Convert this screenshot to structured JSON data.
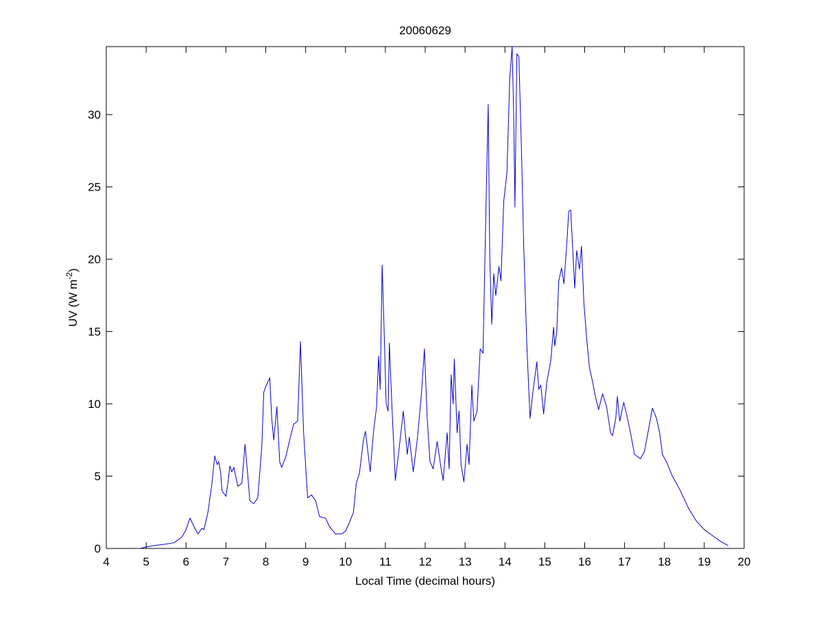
{
  "chart_data": {
    "type": "line",
    "title": "20060629",
    "xlabel": "Local Time (decimal hours)",
    "ylabel": {
      "text": "UV (W m",
      "superscript": "-2",
      "suffix": ")"
    },
    "color": "#0000cc",
    "xlim": [
      4,
      20
    ],
    "xticks": [
      4,
      5,
      6,
      7,
      8,
      9,
      10,
      11,
      12,
      13,
      14,
      15,
      16,
      17,
      18,
      19,
      20
    ],
    "ylim": [
      0,
      34.7
    ],
    "yticks": [
      0,
      5,
      10,
      15,
      20,
      25,
      30
    ],
    "grid": false,
    "x": [
      4.85,
      5.0,
      5.2,
      5.5,
      5.7,
      5.9,
      6.0,
      6.1,
      6.2,
      6.3,
      6.4,
      6.45,
      6.55,
      6.65,
      6.72,
      6.78,
      6.82,
      6.87,
      6.9,
      7.0,
      7.05,
      7.1,
      7.15,
      7.2,
      7.3,
      7.4,
      7.48,
      7.55,
      7.6,
      7.7,
      7.8,
      7.9,
      7.95,
      8.0,
      8.1,
      8.15,
      8.2,
      8.28,
      8.35,
      8.4,
      8.5,
      8.6,
      8.7,
      8.8,
      8.87,
      8.95,
      9.05,
      9.15,
      9.25,
      9.35,
      9.5,
      9.6,
      9.75,
      9.9,
      10.0,
      10.1,
      10.2,
      10.27,
      10.35,
      10.45,
      10.5,
      10.57,
      10.62,
      10.7,
      10.78,
      10.83,
      10.87,
      10.92,
      10.97,
      11.02,
      11.07,
      11.1,
      11.17,
      11.25,
      11.35,
      11.45,
      11.55,
      11.6,
      11.7,
      11.8,
      11.9,
      11.98,
      12.05,
      12.12,
      12.2,
      12.3,
      12.4,
      12.45,
      12.55,
      12.6,
      12.65,
      12.7,
      12.73,
      12.8,
      12.85,
      12.9,
      12.97,
      13.05,
      13.1,
      13.17,
      13.22,
      13.3,
      13.38,
      13.45,
      13.52,
      13.58,
      13.62,
      13.67,
      13.72,
      13.77,
      13.85,
      13.9,
      13.97,
      14.05,
      14.12,
      14.18,
      14.22,
      14.25,
      14.3,
      14.35,
      14.42,
      14.47,
      14.55,
      14.63,
      14.7,
      14.8,
      14.85,
      14.9,
      14.97,
      15.05,
      15.15,
      15.22,
      15.25,
      15.3,
      15.35,
      15.42,
      15.48,
      15.55,
      15.6,
      15.65,
      15.75,
      15.8,
      15.87,
      15.92,
      15.98,
      16.05,
      16.12,
      16.2,
      16.27,
      16.35,
      16.45,
      16.55,
      16.65,
      16.7,
      16.78,
      16.82,
      16.88,
      16.98,
      17.05,
      17.15,
      17.25,
      17.4,
      17.5,
      17.6,
      17.7,
      17.8,
      17.88,
      17.95,
      18.05,
      18.2,
      18.4,
      18.6,
      18.8,
      19.0,
      19.2,
      19.4,
      19.6
    ],
    "values": [
      0,
      0.1,
      0.2,
      0.3,
      0.4,
      0.8,
      1.3,
      2.1,
      1.5,
      1.0,
      1.4,
      1.3,
      2.5,
      4.5,
      6.4,
      5.8,
      6.0,
      5.2,
      4.0,
      3.6,
      4.5,
      5.7,
      5.3,
      5.6,
      4.3,
      4.5,
      7.2,
      5.0,
      3.3,
      3.1,
      3.5,
      7.0,
      10.8,
      11.2,
      11.8,
      9.0,
      7.5,
      9.8,
      6.0,
      5.6,
      6.3,
      7.5,
      8.6,
      8.8,
      14.3,
      8.0,
      3.5,
      3.7,
      3.3,
      2.2,
      2.1,
      1.5,
      1.0,
      1.0,
      1.2,
      1.8,
      2.5,
      4.5,
      5.2,
      7.5,
      8.1,
      6.5,
      5.3,
      8.0,
      9.8,
      13.3,
      11.0,
      19.6,
      15.0,
      10.0,
      9.5,
      14.2,
      9.5,
      4.7,
      7.0,
      9.5,
      6.5,
      7.7,
      5.3,
      7.5,
      10.5,
      13.8,
      9.0,
      6.0,
      5.5,
      7.4,
      5.5,
      4.7,
      8.0,
      5.5,
      12.0,
      10.0,
      13.1,
      8.0,
      9.5,
      5.8,
      4.6,
      7.2,
      5.8,
      11.3,
      8.8,
      9.5,
      13.8,
      13.5,
      23.0,
      30.7,
      20.0,
      15.5,
      19.0,
      17.5,
      19.5,
      18.5,
      24.0,
      26.0,
      32.5,
      34.7,
      30.0,
      23.6,
      34.2,
      34.0,
      27.0,
      21.0,
      14.0,
      9.0,
      10.8,
      12.9,
      11.0,
      11.3,
      9.3,
      11.5,
      13.0,
      15.3,
      14.0,
      15.0,
      18.5,
      19.4,
      18.3,
      21.0,
      23.3,
      23.4,
      18.0,
      20.6,
      19.3,
      20.9,
      17.0,
      14.5,
      12.5,
      11.5,
      10.5,
      9.6,
      10.7,
      9.8,
      8.0,
      7.8,
      9.0,
      10.5,
      8.8,
      10.1,
      9.3,
      8.0,
      6.5,
      6.2,
      6.7,
      8.2,
      9.7,
      9.0,
      8.0,
      6.5,
      6.0,
      5.0,
      4.0,
      2.8,
      1.9,
      1.3,
      0.9,
      0.5,
      0.2
    ]
  }
}
